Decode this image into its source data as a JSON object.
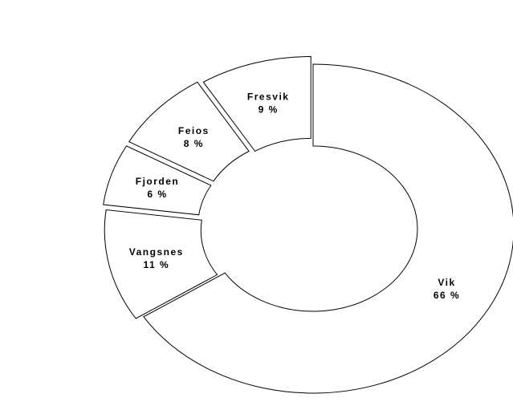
{
  "chart_data": {
    "type": "pie",
    "style": "exploded donut",
    "categories": [
      "Vik",
      "Vangsnes",
      "Fjorden",
      "Feios",
      "Fresvik"
    ],
    "values": [
      66,
      11,
      6,
      8,
      9
    ],
    "labels": [
      "66 %",
      "11 %",
      "6 %",
      "8 %",
      "9 %"
    ],
    "colors": {
      "fill": "#ffffff",
      "stroke": "#000000"
    }
  }
}
